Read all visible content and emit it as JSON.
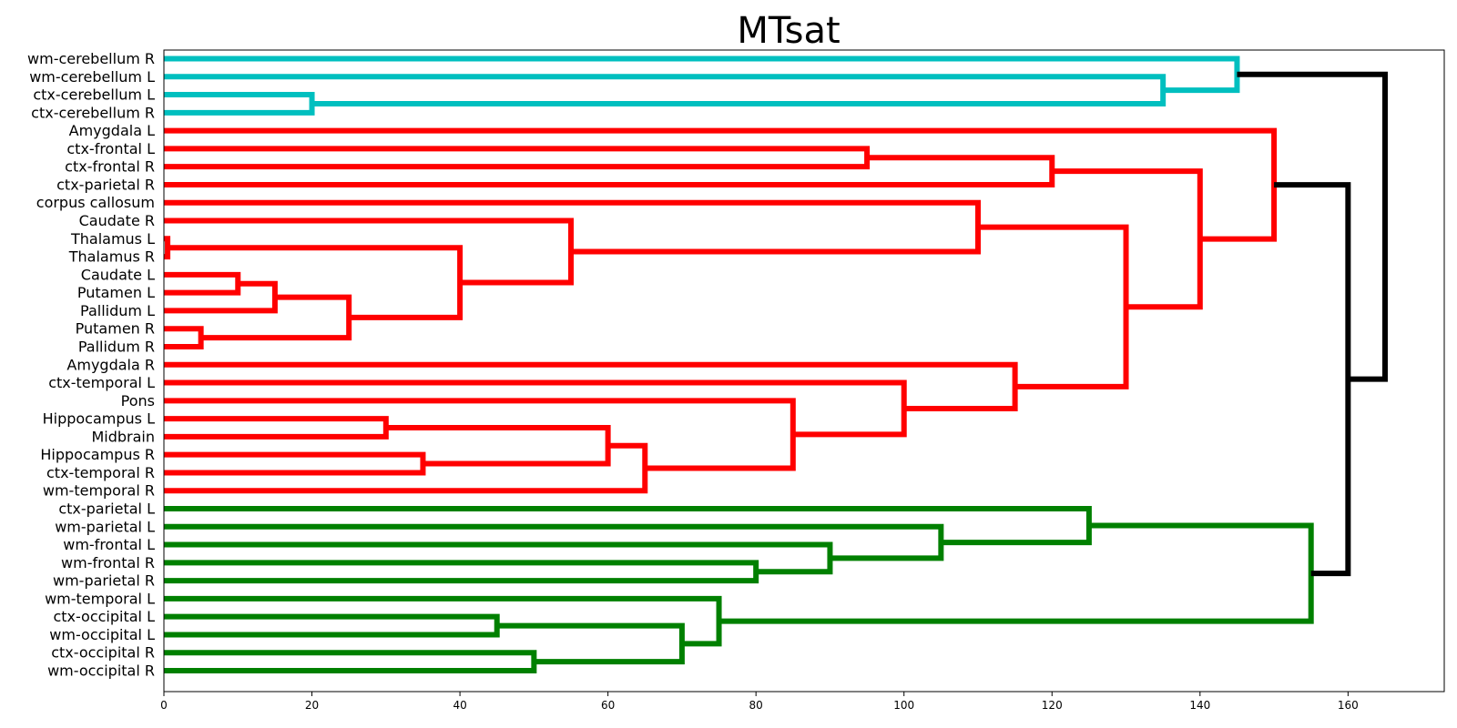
{
  "chart_data": {
    "type": "dendrogram",
    "title": "MTsat",
    "xlim": [
      0,
      173
    ],
    "x_ticks": [
      0,
      20,
      40,
      60,
      80,
      100,
      120,
      140,
      160
    ],
    "leaves": [
      "wm-cerebellum R",
      "wm-cerebellum L",
      "ctx-cerebellum L",
      "ctx-cerebellum R",
      "Amygdala L",
      "ctx-frontal L",
      "ctx-frontal R",
      "ctx-parietal R",
      "corpus callosum",
      "Caudate R",
      "Thalamus L",
      "Thalamus R",
      "Caudate L",
      "Putamen L",
      "Pallidum L",
      "Putamen R",
      "Pallidum R",
      "Amygdala R",
      "ctx-temporal L",
      "Pons",
      "Hippocampus L",
      "Midbrain",
      "Hippocampus R",
      "ctx-temporal R",
      "wm-temporal R",
      "ctx-parietal L",
      "wm-parietal L",
      "wm-frontal L",
      "wm-frontal R",
      "wm-parietal R",
      "wm-temporal L",
      "ctx-occipital L",
      "wm-occipital L",
      "ctx-occipital R",
      "wm-occipital R"
    ],
    "cluster_colors": {
      "cyan": "#00bfbf",
      "red": "#ff0000",
      "green": "#008000",
      "link": "#000000"
    },
    "merges": [
      {
        "a": "ctx-cerebellum L",
        "b": "ctx-cerebellum R",
        "id": "C1",
        "height": 20,
        "color": "cyan"
      },
      {
        "a": "wm-cerebellum L",
        "b": "C1",
        "id": "C2",
        "height": 135,
        "color": "cyan"
      },
      {
        "a": "wm-cerebellum R",
        "b": "C2",
        "id": "C3",
        "height": 145,
        "color": "cyan"
      },
      {
        "a": "ctx-frontal L",
        "b": "ctx-frontal R",
        "id": "R1",
        "height": 95,
        "color": "red"
      },
      {
        "a": "R1",
        "b": "ctx-parietal R",
        "id": "R2",
        "height": 120,
        "color": "red"
      },
      {
        "a": "Thalamus L",
        "b": "Thalamus R",
        "id": "R3",
        "height": 0.5,
        "color": "red"
      },
      {
        "a": "Caudate L",
        "b": "Putamen L",
        "id": "R4",
        "height": 10,
        "color": "red"
      },
      {
        "a": "R4",
        "b": "Pallidum L",
        "id": "R5",
        "height": 15,
        "color": "red"
      },
      {
        "a": "Putamen R",
        "b": "Pallidum R",
        "id": "R6",
        "height": 5,
        "color": "red"
      },
      {
        "a": "R5",
        "b": "R6",
        "id": "R7",
        "height": 25,
        "color": "red"
      },
      {
        "a": "R3",
        "b": "R7",
        "id": "R8",
        "height": 40,
        "color": "red"
      },
      {
        "a": "Caudate R",
        "b": "R8",
        "id": "R9",
        "height": 55,
        "color": "red"
      },
      {
        "a": "corpus callosum",
        "b": "R9",
        "id": "R10",
        "height": 110,
        "color": "red"
      },
      {
        "a": "Hippocampus L",
        "b": "Midbrain",
        "id": "R11",
        "height": 30,
        "color": "red"
      },
      {
        "a": "Hippocampus R",
        "b": "ctx-temporal R",
        "id": "R12",
        "height": 35,
        "color": "red"
      },
      {
        "a": "R11",
        "b": "R12",
        "id": "R13",
        "height": 60,
        "color": "red"
      },
      {
        "a": "R13",
        "b": "wm-temporal R",
        "id": "R14",
        "height": 65,
        "color": "red"
      },
      {
        "a": "Pons",
        "b": "R14",
        "id": "R15",
        "height": 85,
        "color": "red"
      },
      {
        "a": "ctx-temporal L",
        "b": "R15",
        "id": "R16",
        "height": 100,
        "color": "red"
      },
      {
        "a": "Amygdala R",
        "b": "R16",
        "id": "R17",
        "height": 115,
        "color": "red"
      },
      {
        "a": "R10",
        "b": "R17",
        "id": "R18",
        "height": 130,
        "color": "red"
      },
      {
        "a": "R2",
        "b": "R18",
        "id": "R19",
        "height": 140,
        "color": "red"
      },
      {
        "a": "Amygdala L",
        "b": "R19",
        "id": "R20",
        "height": 150,
        "color": "red"
      },
      {
        "a": "wm-frontal R",
        "b": "wm-parietal R",
        "id": "G1",
        "height": 80,
        "color": "green"
      },
      {
        "a": "wm-frontal L",
        "b": "G1",
        "id": "G2",
        "height": 90,
        "color": "green"
      },
      {
        "a": "wm-parietal L",
        "b": "G2",
        "id": "G3",
        "height": 105,
        "color": "green"
      },
      {
        "a": "ctx-parietal L",
        "b": "G3",
        "id": "G4",
        "height": 125,
        "color": "green"
      },
      {
        "a": "ctx-occipital L",
        "b": "wm-occipital L",
        "id": "G5",
        "height": 45,
        "color": "green"
      },
      {
        "a": "ctx-occipital R",
        "b": "wm-occipital R",
        "id": "G6",
        "height": 50,
        "color": "green"
      },
      {
        "a": "G5",
        "b": "G6",
        "id": "G7",
        "height": 70,
        "color": "green"
      },
      {
        "a": "wm-temporal L",
        "b": "G7",
        "id": "G8",
        "height": 75,
        "color": "green"
      },
      {
        "a": "G4",
        "b": "G8",
        "id": "G9",
        "height": 155,
        "color": "green"
      },
      {
        "a": "R20",
        "b": "G9",
        "id": "K1",
        "height": 160,
        "color": "link"
      },
      {
        "a": "C3",
        "b": "K1",
        "id": "K2",
        "height": 165,
        "color": "link"
      }
    ]
  }
}
